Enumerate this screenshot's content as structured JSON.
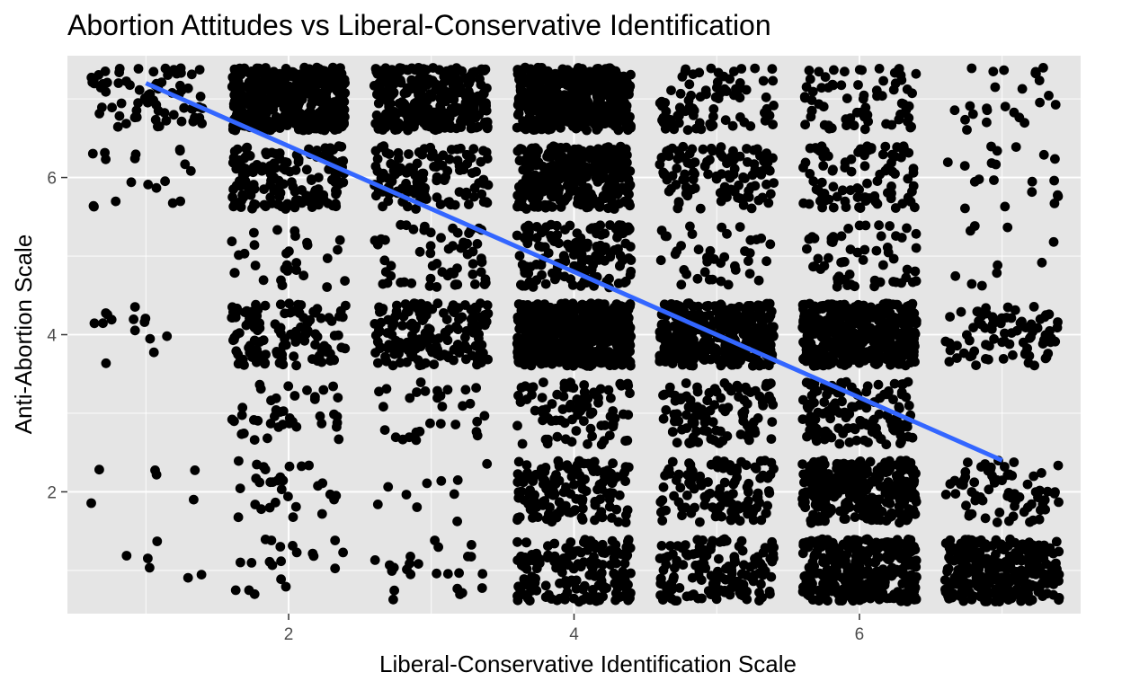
{
  "chart_data": {
    "type": "scatter",
    "title": "Abortion Attitudes vs Liberal-Conservative Identification",
    "xlabel": "Liberal-Conservative Identification Scale",
    "ylabel": "Anti-Abortion Scale",
    "xlim": [
      0.45,
      7.55
    ],
    "ylim": [
      0.45,
      7.55
    ],
    "x_ticks": [
      2,
      4,
      6
    ],
    "y_ticks": [
      2,
      4,
      6
    ],
    "x_minor_ticks": [
      1,
      3,
      5,
      7
    ],
    "y_minor_ticks": [
      1,
      3,
      5,
      7
    ],
    "grid": true,
    "jitter": 0.4,
    "colors": {
      "panel": "#e5e5e5",
      "grid": "#ffffff",
      "points": "#000000",
      "trend": "#3366ff",
      "tick_label": "#4d4d4d"
    },
    "point_counts": {
      "note_axis_order": "rows are x = 1..7, columns are y = 1..7",
      "counts": [
        [
          6,
          6,
          0,
          14,
          0,
          18,
          70
        ],
        [
          20,
          30,
          40,
          120,
          30,
          150,
          500
        ],
        [
          24,
          10,
          30,
          180,
          60,
          120,
          300
        ],
        [
          170,
          150,
          90,
          600,
          140,
          350,
          450
        ],
        [
          150,
          120,
          110,
          380,
          40,
          110,
          80
        ],
        [
          300,
          300,
          130,
          450,
          60,
          90,
          70
        ],
        [
          300,
          70,
          0,
          80,
          10,
          20,
          25
        ]
      ]
    },
    "series": [
      {
        "type": "line",
        "x": [
          1,
          7
        ],
        "y": [
          7.2,
          2.4
        ]
      }
    ]
  }
}
